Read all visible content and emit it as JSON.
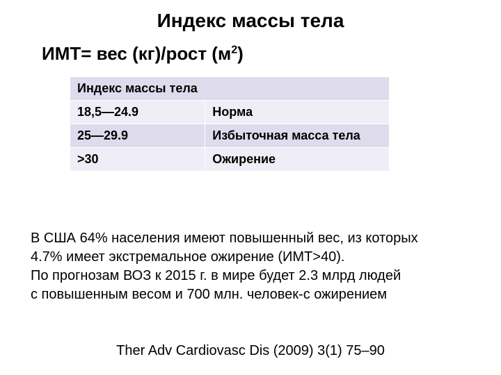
{
  "title": "Индекс массы тела",
  "formula": {
    "prefix": "ИМТ= вес (кг)/рост (м",
    "exp": "2",
    "suffix": ")"
  },
  "table": {
    "header": "Индекс массы тела",
    "columns": [
      "range",
      "label"
    ],
    "col_widths": [
      "190px",
      "260px"
    ],
    "header_bg": "#dedcec",
    "row_bg_a": "#efeef6",
    "row_bg_b": "#dedcec",
    "border_color": "#ffffff",
    "font_size": 18,
    "rows": [
      {
        "range": "18,5—24.9",
        "label": "Норма"
      },
      {
        "range": "25—29.9",
        "label": "Избыточная масса тела"
      },
      {
        "range": ">30",
        "label": "Ожирение"
      }
    ]
  },
  "paragraph": {
    "line1": "В США 64% населения имеют повышенный вес, из которых",
    "line2": "4.7% имеет экстремальное ожирение (ИМТ>40).",
    "line3": "По прогнозам ВОЗ к 2015 г. в мире будет 2.3 млрд людей",
    "line4": "с повышенным весом и 700 млн. человек-с ожирением"
  },
  "citation": "Ther Adv Cardiovasc Dis (2009) 3(1) 75–90",
  "colors": {
    "background": "#ffffff",
    "text": "#000000"
  },
  "font_sizes": {
    "title": 28,
    "formula": 26,
    "paragraph": 20,
    "citation": 20
  }
}
